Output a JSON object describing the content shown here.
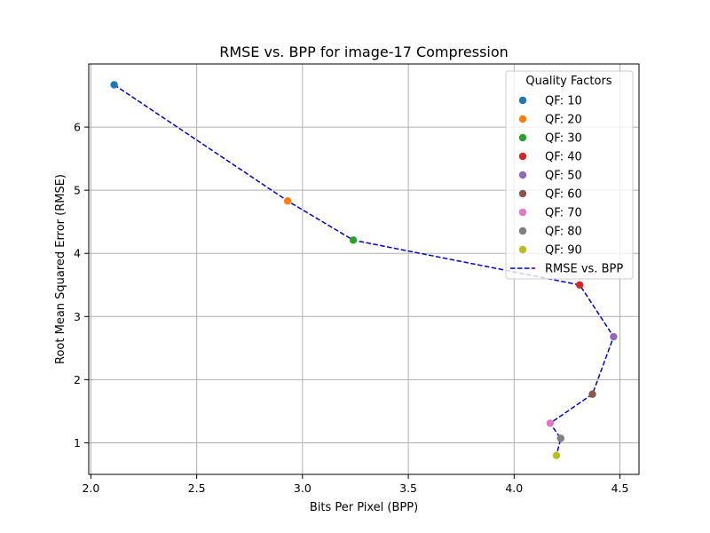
{
  "chart_data": {
    "type": "scatter",
    "title": "RMSE vs. BPP for image-17 Compression",
    "xlabel": "Bits Per Pixel (BPP)",
    "ylabel": "Root Mean Squared Error (RMSE)",
    "xlim": [
      1.99,
      4.59
    ],
    "ylim": [
      0.5,
      7.0
    ],
    "xticks": [
      2.0,
      2.5,
      3.0,
      3.5,
      4.0,
      4.5
    ],
    "xtick_labels": [
      "2.0",
      "2.5",
      "3.0",
      "3.5",
      "4.0",
      "4.5"
    ],
    "yticks": [
      1,
      2,
      3,
      4,
      5,
      6
    ],
    "ytick_labels": [
      "1",
      "2",
      "3",
      "4",
      "5",
      "6"
    ],
    "grid": true,
    "legend": {
      "title": "Quality Factors",
      "position": "upper-right",
      "line_label": "RMSE vs. BPP"
    },
    "points": [
      {
        "label": "QF: 10",
        "x": 2.11,
        "y": 6.67,
        "color": "#1f77b4"
      },
      {
        "label": "QF: 20",
        "x": 2.93,
        "y": 4.83,
        "color": "#ff7f0e"
      },
      {
        "label": "QF: 30",
        "x": 3.24,
        "y": 4.21,
        "color": "#2ca02c"
      },
      {
        "label": "QF: 40",
        "x": 4.31,
        "y": 3.5,
        "color": "#d62728"
      },
      {
        "label": "QF: 50",
        "x": 4.47,
        "y": 2.68,
        "color": "#9467bd"
      },
      {
        "label": "QF: 60",
        "x": 4.37,
        "y": 1.77,
        "color": "#8c564b"
      },
      {
        "label": "QF: 70",
        "x": 4.17,
        "y": 1.31,
        "color": "#e377c2"
      },
      {
        "label": "QF: 80",
        "x": 4.22,
        "y": 1.07,
        "color": "#7f7f7f"
      },
      {
        "label": "QF: 90",
        "x": 4.2,
        "y": 0.8,
        "color": "#bcbd22"
      }
    ],
    "line": {
      "style": "dashed",
      "color": "#0000cc"
    }
  }
}
